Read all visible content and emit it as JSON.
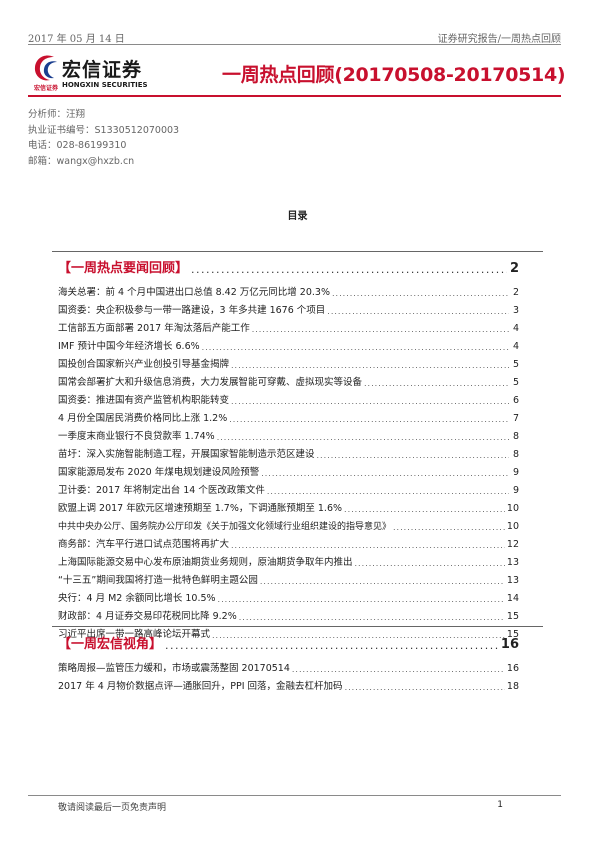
{
  "header": {
    "date": "2017 年 05 月 14 日",
    "report_type": "证券研究报告/一周热点回顾"
  },
  "logo": {
    "name_cn": "宏信证券",
    "name_cn_small": "宏信证券",
    "name_en": "HONGXIN SECURITIES",
    "mark_color": "#c8102e"
  },
  "title": "一周热点回顾(20170508-20170514)",
  "analyst": {
    "name": "分析师：汪翔",
    "license": "执业证书编号：S1330512070003",
    "phone": "电话：028-86199310",
    "email": "邮箱：wangx@hxzb.cn"
  },
  "toc_heading": "目录",
  "sections": [
    {
      "title": "【一周热点要闻回顾】",
      "page": "2",
      "items": [
        {
          "title": "海关总署：前 4 个月中国进出口总值 8.42 万亿元同比增 20.3%",
          "page": "2"
        },
        {
          "title": "国资委：央企积极参与一带一路建设，3 年多共建 1676 个项目",
          "page": "3"
        },
        {
          "title": "工信部五方面部署 2017 年淘汰落后产能工作",
          "page": "4"
        },
        {
          "title": "IMF 预计中国今年经济增长 6.6%",
          "page": "4"
        },
        {
          "title": "国投创合国家新兴产业创投引导基金揭牌",
          "page": "5"
        },
        {
          "title": "国常会部署扩大和升级信息消费，大力发展智能可穿戴、虚拟现实等设备",
          "page": "5"
        },
        {
          "title": "国资委：推进国有资产监管机构职能转变",
          "page": "6"
        },
        {
          "title": "4 月份全国居民消费价格同比上涨 1.2%",
          "page": "7"
        },
        {
          "title": "一季度末商业银行不良贷款率 1.74%",
          "page": "8"
        },
        {
          "title": "苗圩：深入实施智能制造工程，开展国家智能制造示范区建设",
          "page": "8"
        },
        {
          "title": "国家能源局发布 2020 年煤电规划建设风险预警",
          "page": "9"
        },
        {
          "title": "卫计委：2017 年将制定出台 14 个医改政策文件",
          "page": "9"
        },
        {
          "title": "欧盟上调 2017 年欧元区增速预期至 1.7%，下调通胀预期至 1.6%",
          "page": "10"
        },
        {
          "title": "中共中央办公厅、国务院办公厅印发《关于加强文化领域行业组织建设的指导意见》",
          "page": "10"
        },
        {
          "title": "商务部：汽车平行进口试点范围将再扩大",
          "page": "12"
        },
        {
          "title": "上海国际能源交易中心发布原油期货业务规则，原油期货争取年内推出",
          "page": "13"
        },
        {
          "title": "“十三五”期间我国将打造一批特色鲜明主题公园",
          "page": "13"
        },
        {
          "title": "央行：4 月 M2 余额同比增长 10.5%",
          "page": "14"
        },
        {
          "title": "财政部：4 月证券交易印花税同比降 9.2%",
          "page": "15"
        },
        {
          "title": "习近平出席一带一路高峰论坛开幕式",
          "page": "15"
        }
      ]
    },
    {
      "title": "【一周宏信视角】",
      "page": "16",
      "items": [
        {
          "title": "策略周报—监管压力缓和，市场或震荡整固 20170514",
          "page": "16"
        },
        {
          "title": "2017 年 4 月物价数据点评—通胀回升，PPI 回落，金融去杠杆加码",
          "page": "18"
        }
      ]
    }
  ],
  "footer": {
    "disclaimer": "敬请阅读最后一页免责声明",
    "page_number": "1"
  }
}
